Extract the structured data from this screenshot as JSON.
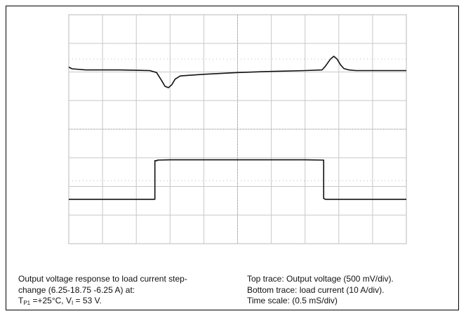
{
  "chart_data": {
    "type": "line",
    "title": "",
    "xlabel": "",
    "ylabel": "",
    "x_divisions": 10,
    "y_divisions": 8,
    "xlim": [
      0,
      10
    ],
    "ylim": [
      0,
      8
    ],
    "grid": true,
    "series": [
      {
        "x": [
          0,
          0.1,
          0.5,
          1.0,
          1.5,
          2.0,
          2.4,
          2.6,
          2.75,
          2.85,
          2.95,
          3.05,
          3.15,
          3.3,
          3.5,
          4.0,
          5.0,
          6.0,
          7.0,
          7.5,
          7.6,
          7.75,
          7.85,
          7.95,
          8.05,
          8.15,
          8.3,
          8.5,
          9.0,
          10.0
        ],
        "y": [
          6.17,
          6.11,
          6.07,
          6.07,
          6.07,
          6.06,
          6.05,
          5.98,
          5.7,
          5.5,
          5.45,
          5.55,
          5.75,
          5.86,
          5.88,
          5.92,
          5.98,
          6.02,
          6.05,
          6.07,
          6.2,
          6.45,
          6.55,
          6.45,
          6.25,
          6.12,
          6.07,
          6.05,
          6.05,
          6.05
        ]
      },
      {
        "x": [
          0,
          2.55,
          2.55,
          2.62,
          2.62,
          3.0,
          4.0,
          5.0,
          6.0,
          7.0,
          7.55,
          7.55,
          7.6,
          10.0
        ],
        "y": [
          1.55,
          1.55,
          2.9,
          2.9,
          2.92,
          2.93,
          2.93,
          2.93,
          2.93,
          2.93,
          2.92,
          1.58,
          1.55,
          1.55
        ]
      }
    ]
  },
  "caption": {
    "left_line1": "Output voltage response to load current step-",
    "left_line2": "change (6.25-18.75   -6.25 A) at:",
    "left_line3_t": "T",
    "left_line3_tsub": "P1",
    "left_line3_mid": " =+25°C, V",
    "left_line3_vsub": "I",
    "left_line3_end": " = 53 V.",
    "right_line1": "Top trace: Output  voltage  (500 mV/div).",
    "right_line2": "Bottom  trace:  load current  (10  A/div).",
    "right_line3": "Time scale:  (0.5 mS/div)"
  }
}
